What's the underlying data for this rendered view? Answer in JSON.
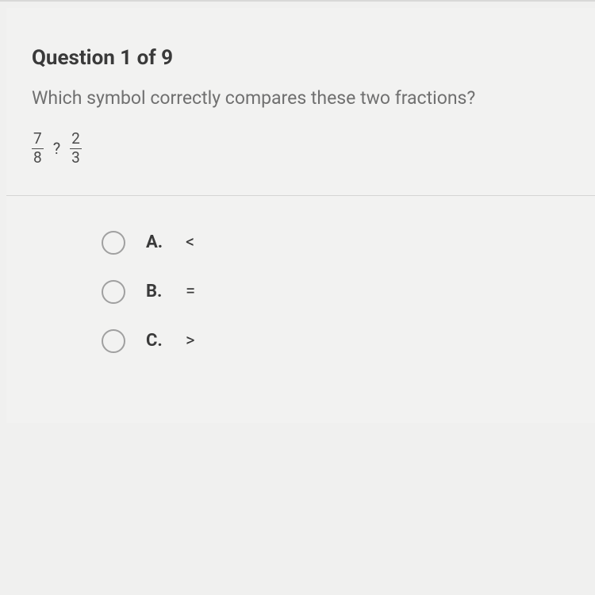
{
  "question": {
    "title": "Question 1 of 9",
    "prompt": "Which symbol correctly compares these two fractions?",
    "fraction1": {
      "numerator": "7",
      "denominator": "8"
    },
    "operator": "?",
    "fraction2": {
      "numerator": "2",
      "denominator": "3"
    }
  },
  "options": [
    {
      "label": "A.",
      "value": "<"
    },
    {
      "label": "B.",
      "value": "="
    },
    {
      "label": "C.",
      "value": ">"
    }
  ],
  "style": {
    "background_color": "#f0f0ef",
    "title_color": "#3a3a3a",
    "prompt_color": "#707070",
    "divider_color": "#d5d5d4",
    "radio_border_color": "#a0a0a0",
    "text_color": "#3a3a3a",
    "title_fontsize": 26,
    "prompt_fontsize": 23,
    "option_fontsize": 22
  }
}
